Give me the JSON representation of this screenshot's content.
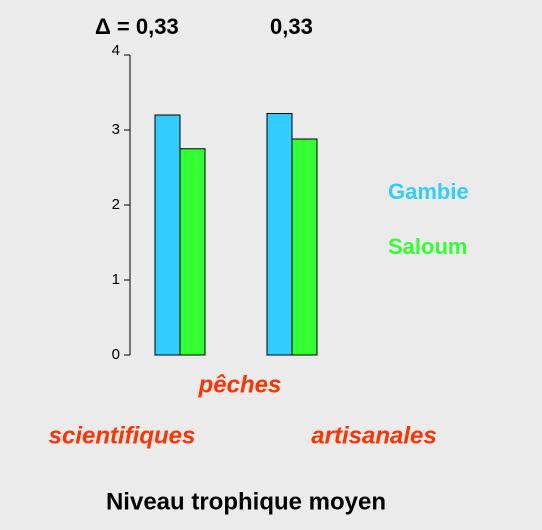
{
  "chart_data": {
    "type": "bar",
    "title": "Niveau trophique moyen",
    "annotations": [
      "Δ = 0,33",
      "0,33"
    ],
    "group_label": "pêches",
    "categories": [
      "scientifiques",
      "artisanales"
    ],
    "series": [
      {
        "name": "Gambie",
        "color": "#33ccff",
        "values": [
          3.2,
          3.22
        ]
      },
      {
        "name": "Saloum",
        "color": "#33ff33",
        "values": [
          2.75,
          2.88
        ]
      }
    ],
    "ylim": [
      0,
      4
    ],
    "yticks": [
      0,
      1,
      2,
      3,
      4
    ]
  }
}
